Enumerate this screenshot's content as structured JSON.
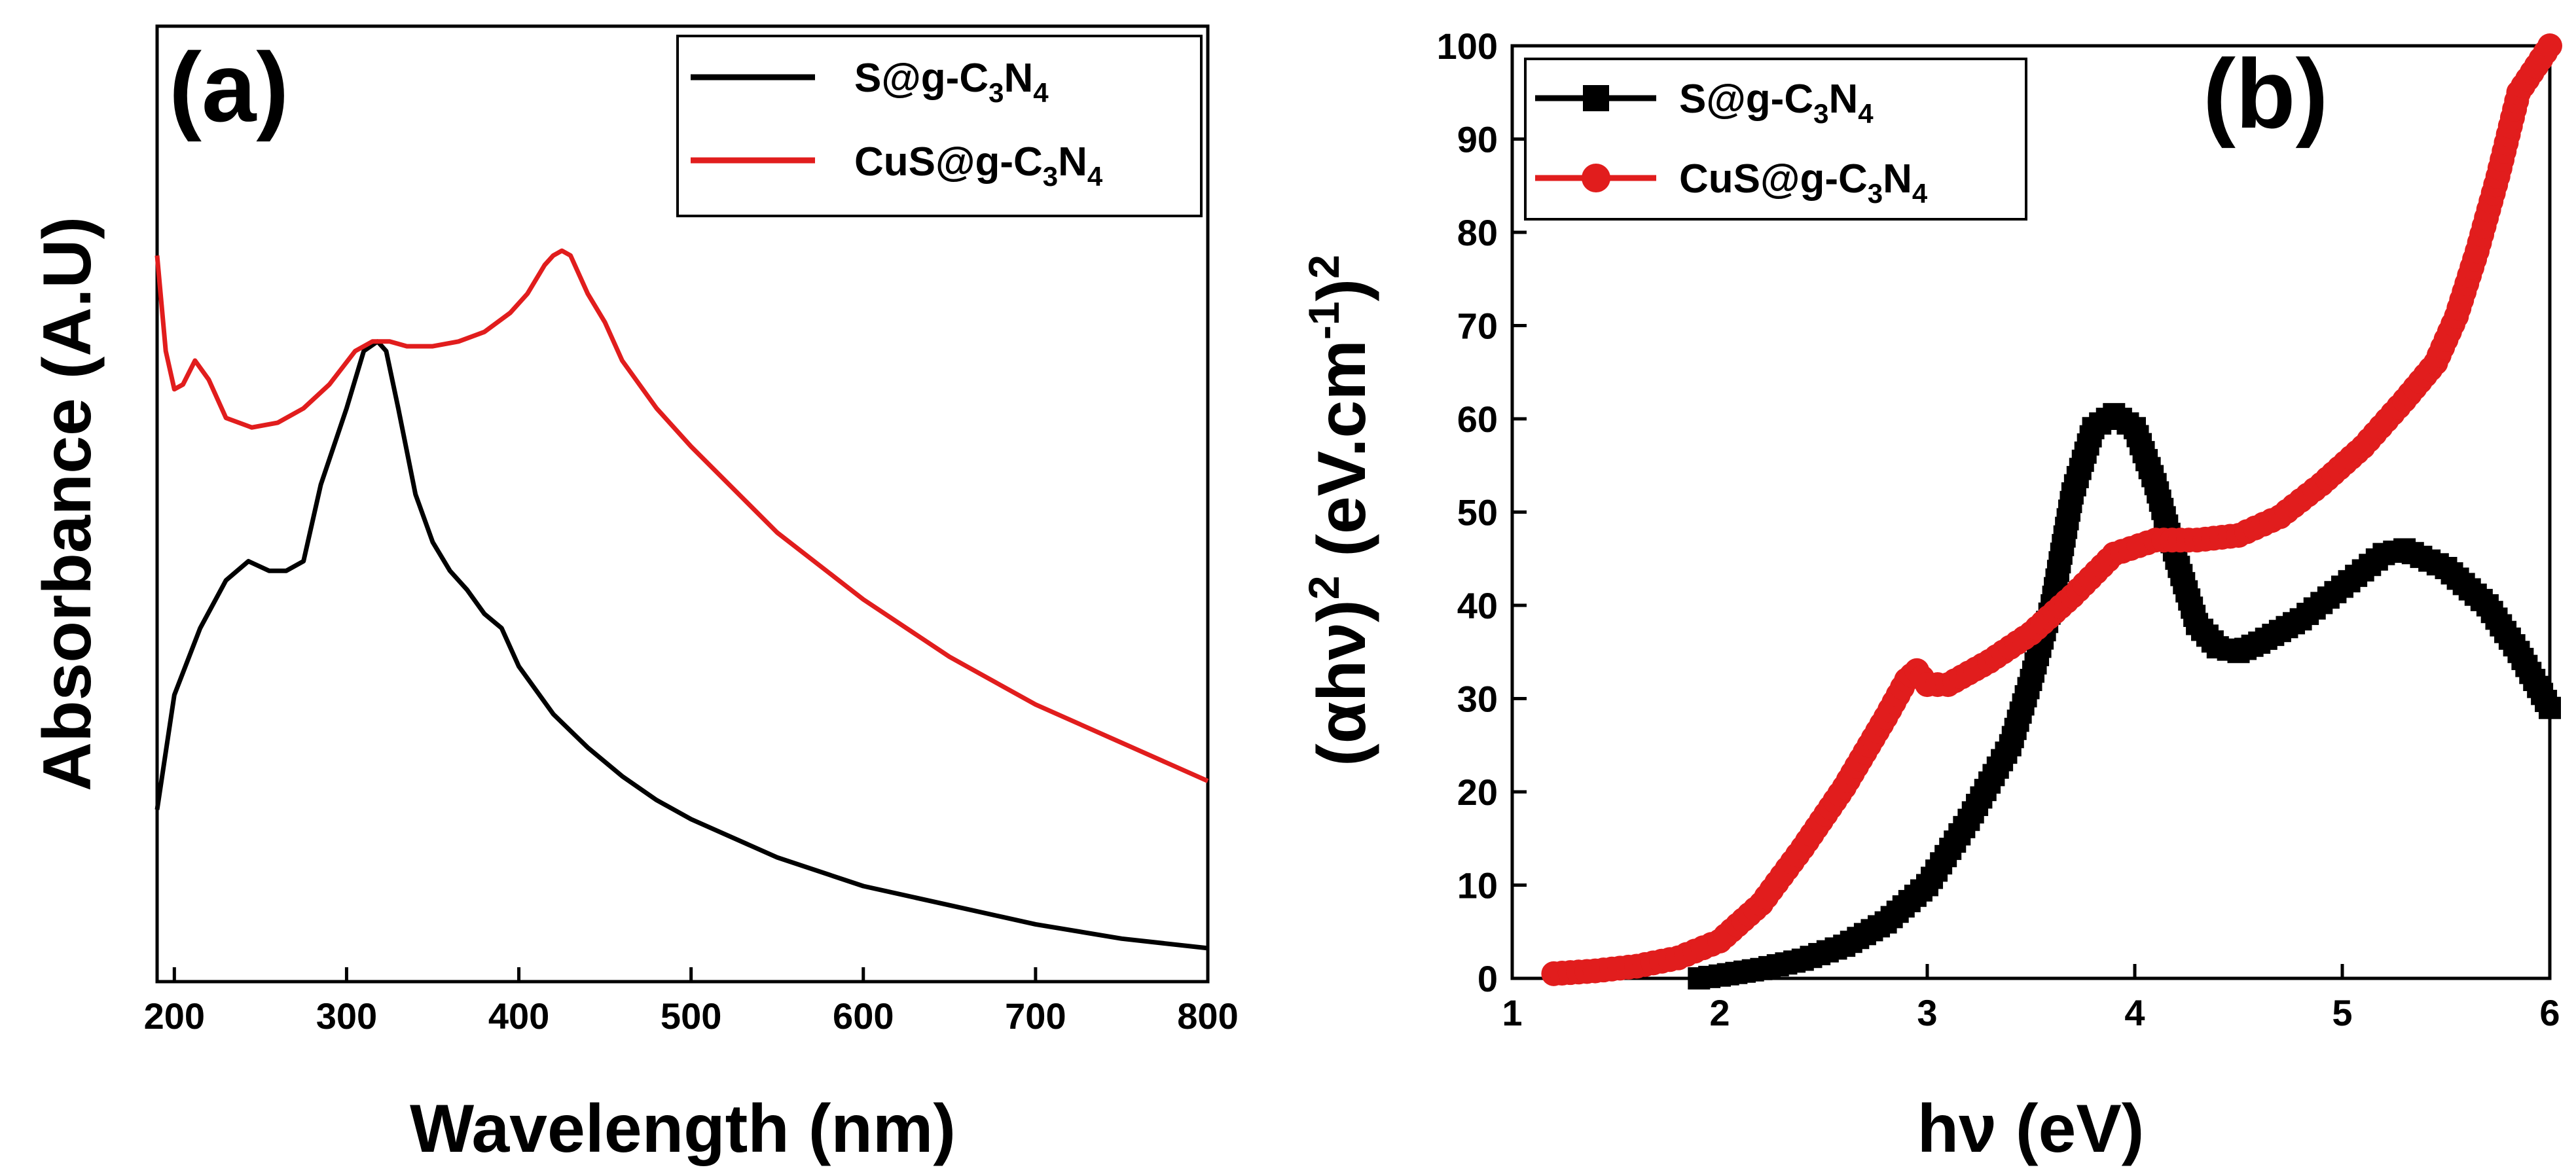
{
  "chart_data": [
    {
      "type": "line",
      "panel": "(a)",
      "xlabel": "Wavelength (nm)",
      "ylabel": "Absorbance (A.U)",
      "xlim": [
        190,
        800
      ],
      "ylim": [
        0,
        1
      ],
      "xticks": [
        200,
        300,
        400,
        500,
        600,
        700,
        800
      ],
      "yticks": [],
      "legend": {
        "position": "top-right"
      },
      "series": [
        {
          "name": "S@g-C3N4",
          "name_parts": {
            "pre": "S@g-C",
            "sub1": "3",
            "mid": "N",
            "sub2": "4"
          },
          "color": "#000000",
          "marker": "none",
          "x": [
            190,
            200,
            215,
            230,
            243,
            255,
            265,
            275,
            285,
            300,
            310,
            318,
            323,
            330,
            340,
            350,
            360,
            370,
            380,
            390,
            400,
            420,
            440,
            460,
            480,
            500,
            550,
            600,
            650,
            700,
            750,
            800
          ],
          "y": [
            0.18,
            0.3,
            0.37,
            0.42,
            0.44,
            0.43,
            0.43,
            0.44,
            0.52,
            0.6,
            0.66,
            0.67,
            0.66,
            0.6,
            0.51,
            0.46,
            0.43,
            0.41,
            0.385,
            0.37,
            0.33,
            0.28,
            0.245,
            0.215,
            0.19,
            0.17,
            0.13,
            0.1,
            0.08,
            0.06,
            0.045,
            0.035
          ]
        },
        {
          "name": "CuS@g-C3N4",
          "name_parts": {
            "pre": "CuS@g-C",
            "sub1": "3",
            "mid": "N",
            "sub2": "4"
          },
          "color": "#e11d1d",
          "marker": "none",
          "x": [
            190,
            195,
            200,
            205,
            212,
            220,
            230,
            245,
            260,
            275,
            290,
            305,
            315,
            325,
            335,
            350,
            365,
            380,
            395,
            405,
            415,
            420,
            425,
            430,
            440,
            450,
            460,
            480,
            500,
            550,
            600,
            650,
            700,
            750,
            800
          ],
          "y": [
            0.76,
            0.66,
            0.62,
            0.625,
            0.65,
            0.63,
            0.59,
            0.58,
            0.585,
            0.6,
            0.625,
            0.66,
            0.67,
            0.67,
            0.665,
            0.665,
            0.67,
            0.68,
            0.7,
            0.72,
            0.75,
            0.76,
            0.765,
            0.76,
            0.72,
            0.69,
            0.65,
            0.6,
            0.56,
            0.47,
            0.4,
            0.34,
            0.29,
            0.25,
            0.21
          ]
        }
      ]
    },
    {
      "type": "line",
      "panel": "(b)",
      "xlabel": "hν (eV)",
      "ylabel": "(αhν)2 (eV.cm-1)2",
      "ylabel_parts": {
        "a": "(αhν)",
        "sup1": "2",
        "b": " (eV.cm",
        "sup2": "-1",
        "c": ")",
        "sup3": "2"
      },
      "xlim": [
        1,
        6
      ],
      "ylim": [
        0,
        100
      ],
      "xticks": [
        1,
        2,
        3,
        4,
        5,
        6
      ],
      "yticks": [
        0,
        10,
        20,
        30,
        40,
        50,
        60,
        70,
        80,
        90,
        100
      ],
      "legend": {
        "position": "top-left"
      },
      "series": [
        {
          "name": "S@g-C3N4",
          "name_parts": {
            "pre": "S@g-C",
            "sub1": "3",
            "mid": "N",
            "sub2": "4"
          },
          "color": "#000000",
          "marker": "square",
          "x": [
            1.9,
            2.0,
            2.2,
            2.4,
            2.6,
            2.8,
            3.0,
            3.2,
            3.4,
            3.5,
            3.6,
            3.7,
            3.8,
            3.9,
            4.0,
            4.1,
            4.2,
            4.3,
            4.4,
            4.5,
            4.6,
            4.8,
            5.0,
            5.2,
            5.3,
            5.5,
            5.7,
            5.85,
            6.0
          ],
          "y": [
            0,
            0.3,
            1,
            2,
            3.5,
            6,
            10,
            17,
            25,
            32,
            40,
            52,
            59,
            60.5,
            59,
            53,
            45,
            38,
            35.5,
            35,
            36,
            38.5,
            42,
            45.5,
            46,
            44,
            40,
            35,
            29
          ]
        },
        {
          "name": "CuS@g-C3N4",
          "name_parts": {
            "pre": "CuS@g-C",
            "sub1": "3",
            "mid": "N",
            "sub2": "4"
          },
          "color": "#e11d1d",
          "marker": "circle",
          "x": [
            1.2,
            1.4,
            1.6,
            1.8,
            2.0,
            2.2,
            2.4,
            2.6,
            2.8,
            2.9,
            2.95,
            3.0,
            3.1,
            3.3,
            3.5,
            3.7,
            3.9,
            4.1,
            4.3,
            4.5,
            4.7,
            4.9,
            5.1,
            5.3,
            5.45,
            5.55,
            5.65,
            5.75,
            5.85,
            6.0
          ],
          "y": [
            0.5,
            0.8,
            1.3,
            2.2,
            4,
            8,
            14,
            20.5,
            28,
            32,
            33,
            31.5,
            31.5,
            34,
            37,
            41,
            45.5,
            47,
            47,
            47.5,
            49.5,
            53,
            57,
            62,
            66,
            71,
            78,
            86,
            95,
            100
          ]
        }
      ]
    }
  ]
}
